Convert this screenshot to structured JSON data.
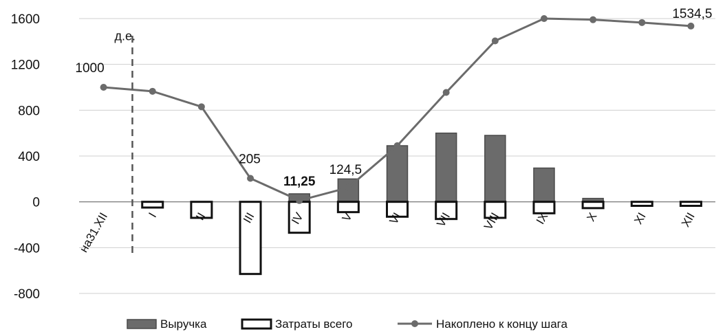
{
  "chart_data": {
    "type": "bar",
    "unit_label": "д.е.",
    "categories": [
      "на31.XII",
      "I",
      "II",
      "III",
      "IV",
      "V",
      "VI",
      "VII",
      "VIII",
      "IX",
      "X",
      "XI",
      "XII"
    ],
    "ylim": [
      -800,
      1600
    ],
    "yticks": [
      -800,
      -400,
      0,
      400,
      800,
      1200,
      1600
    ],
    "grid": true,
    "legend_position": "bottom",
    "series": [
      {
        "name": "Выручка",
        "kind": "bar",
        "color": "#6b6b6b",
        "values": [
          null,
          -25,
          0,
          0,
          70,
          200,
          490,
          600,
          580,
          295,
          30,
          -15,
          -25
        ]
      },
      {
        "name": "Затраты всего",
        "kind": "bar",
        "color": "#ffffff",
        "values": [
          null,
          -50,
          -140,
          -630,
          -270,
          -90,
          -130,
          -150,
          -140,
          -100,
          -55,
          -35,
          -35
        ]
      },
      {
        "name": "Накоплено к концу шага",
        "kind": "line",
        "color": "#6b6b6b",
        "values": [
          1000,
          965,
          830,
          205,
          11.25,
          124.5,
          490,
          955,
          1405,
          1600,
          1590,
          1565,
          1534.5
        ]
      }
    ],
    "annotations": [
      {
        "index": 0,
        "text": "1000",
        "bold": false
      },
      {
        "index": 3,
        "text": "205",
        "bold": false
      },
      {
        "index": 4,
        "text": "11,25",
        "bold": true
      },
      {
        "index": 5,
        "text": "124,5",
        "bold": false
      },
      {
        "index": 12,
        "text": "1534,5",
        "bold": false
      }
    ]
  }
}
